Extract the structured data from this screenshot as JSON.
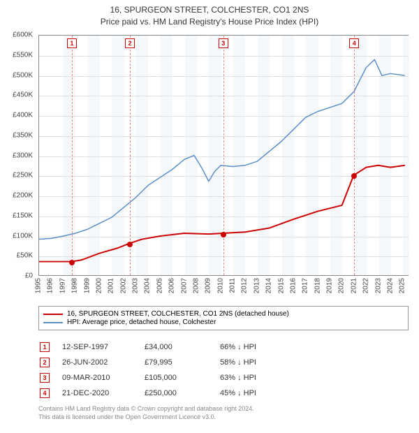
{
  "title_line1": "16, SPURGEON STREET, COLCHESTER, CO1 2NS",
  "title_line2": "Price paid vs. HM Land Registry's House Price Index (HPI)",
  "chart": {
    "type": "line",
    "x_min": 1995.0,
    "x_max": 2025.5,
    "y_min": 0,
    "y_max": 600000,
    "y_tick_step": 50000,
    "y_tick_labels": [
      "£0",
      "£50K",
      "£100K",
      "£150K",
      "£200K",
      "£250K",
      "£300K",
      "£350K",
      "£400K",
      "£450K",
      "£500K",
      "£550K",
      "£600K"
    ],
    "x_ticks": [
      1995,
      1996,
      1997,
      1998,
      1999,
      2000,
      2001,
      2002,
      2003,
      2004,
      2005,
      2006,
      2007,
      2008,
      2009,
      2010,
      2011,
      2012,
      2013,
      2014,
      2015,
      2016,
      2017,
      2018,
      2019,
      2020,
      2021,
      2022,
      2023,
      2024,
      2025
    ],
    "grid_color": "#e0e0e0",
    "band_color": "#f5f8fb",
    "bands": [
      [
        1997,
        1998
      ],
      [
        1999,
        2000
      ],
      [
        2001,
        2002
      ],
      [
        2003,
        2004
      ],
      [
        2005,
        2006
      ],
      [
        2007,
        2008
      ],
      [
        2009,
        2010
      ],
      [
        2011,
        2012
      ],
      [
        2013,
        2014
      ],
      [
        2015,
        2016
      ],
      [
        2017,
        2018
      ],
      [
        2019,
        2020
      ],
      [
        2021,
        2022
      ],
      [
        2023,
        2024
      ],
      [
        2025,
        2025.5
      ]
    ],
    "series_property": {
      "color": "#cc0000",
      "line_width": 2,
      "points": [
        [
          1995.0,
          34000
        ],
        [
          1997.7,
          34000
        ],
        [
          1998.5,
          38000
        ],
        [
          2000.0,
          55000
        ],
        [
          2001.5,
          68000
        ],
        [
          2002.48,
          79995
        ],
        [
          2003.5,
          90000
        ],
        [
          2005.0,
          98000
        ],
        [
          2007.0,
          105000
        ],
        [
          2009.0,
          103000
        ],
        [
          2010.18,
          105000
        ],
        [
          2012.0,
          108000
        ],
        [
          2014.0,
          118000
        ],
        [
          2016.0,
          140000
        ],
        [
          2018.0,
          160000
        ],
        [
          2020.0,
          175000
        ],
        [
          2020.97,
          250000
        ],
        [
          2022.0,
          270000
        ],
        [
          2023.0,
          275000
        ],
        [
          2024.0,
          270000
        ],
        [
          2025.2,
          275000
        ]
      ],
      "dot_color": "#cc0000"
    },
    "series_hpi": {
      "color": "#5b8fc7",
      "line_width": 1.5,
      "points": [
        [
          1995.0,
          90000
        ],
        [
          1996.0,
          92000
        ],
        [
          1997.0,
          98000
        ],
        [
          1998.0,
          105000
        ],
        [
          1999.0,
          115000
        ],
        [
          2000.0,
          130000
        ],
        [
          2001.0,
          145000
        ],
        [
          2002.0,
          170000
        ],
        [
          2003.0,
          195000
        ],
        [
          2004.0,
          225000
        ],
        [
          2005.0,
          245000
        ],
        [
          2006.0,
          265000
        ],
        [
          2007.0,
          290000
        ],
        [
          2007.8,
          300000
        ],
        [
          2008.5,
          265000
        ],
        [
          2009.0,
          235000
        ],
        [
          2009.5,
          260000
        ],
        [
          2010.0,
          275000
        ],
        [
          2011.0,
          272000
        ],
        [
          2012.0,
          275000
        ],
        [
          2013.0,
          285000
        ],
        [
          2014.0,
          310000
        ],
        [
          2015.0,
          335000
        ],
        [
          2016.0,
          365000
        ],
        [
          2017.0,
          395000
        ],
        [
          2018.0,
          410000
        ],
        [
          2019.0,
          420000
        ],
        [
          2020.0,
          430000
        ],
        [
          2021.0,
          460000
        ],
        [
          2022.0,
          520000
        ],
        [
          2022.7,
          540000
        ],
        [
          2023.3,
          500000
        ],
        [
          2024.0,
          505000
        ],
        [
          2025.2,
          500000
        ]
      ]
    },
    "sale_markers": [
      {
        "n": "1",
        "x": 1997.7,
        "y": 34000
      },
      {
        "n": "2",
        "x": 2002.48,
        "y": 79995
      },
      {
        "n": "3",
        "x": 2010.18,
        "y": 105000
      },
      {
        "n": "4",
        "x": 2020.97,
        "y": 250000
      }
    ],
    "marker_line_color": "#e58b8b",
    "marker_box_border": "#cc0000"
  },
  "legend": {
    "item1_label": "16, SPURGEON STREET, COLCHESTER, CO1 2NS (detached house)",
    "item1_color": "#cc0000",
    "item2_label": "HPI: Average price, detached house, Colchester",
    "item2_color": "#5b8fc7"
  },
  "sales": [
    {
      "n": "1",
      "date": "12-SEP-1997",
      "price": "£34,000",
      "diff": "66% ↓ HPI"
    },
    {
      "n": "2",
      "date": "26-JUN-2002",
      "price": "£79,995",
      "diff": "58% ↓ HPI"
    },
    {
      "n": "3",
      "date": "09-MAR-2010",
      "price": "£105,000",
      "diff": "63% ↓ HPI"
    },
    {
      "n": "4",
      "date": "21-DEC-2020",
      "price": "£250,000",
      "diff": "45% ↓ HPI"
    }
  ],
  "footer_line1": "Contains HM Land Registry data © Crown copyright and database right 2024.",
  "footer_line2": "This data is licensed under the Open Government Licence v3.0."
}
